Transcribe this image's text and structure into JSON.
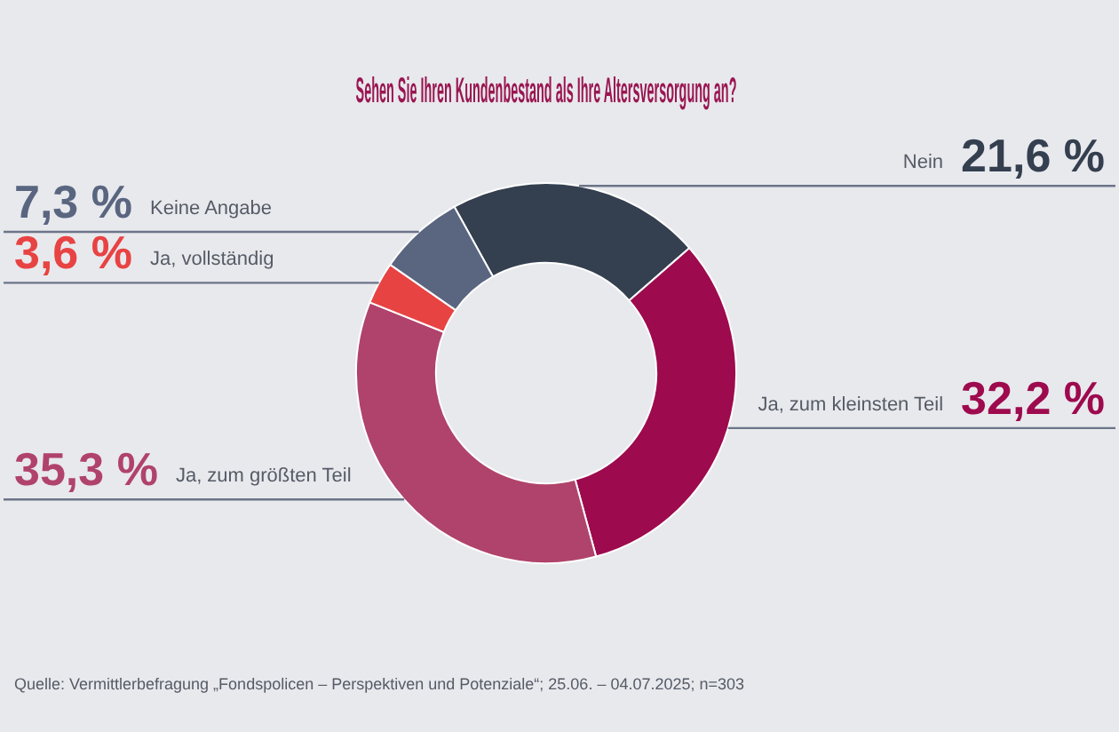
{
  "chart_data": {
    "type": "donut",
    "title": "Sehen Sie Ihren Kundenbestand als Ihre Altersversorgung an?",
    "categories": [
      "Nein",
      "Ja, zum kleinsten Teil",
      "Ja, zum größten Teil",
      "Ja, vollständig",
      "Keine Angabe"
    ],
    "values": [
      21.6,
      32.2,
      35.3,
      3.6,
      7.3
    ],
    "colors": [
      "#343f4f",
      "#9e0a4e",
      "#b0436b",
      "#e84343",
      "#5a6680"
    ],
    "value_labels": [
      "21,6 %",
      "32,2 %",
      "35,3 %",
      "3,6 %",
      "7,3 %"
    ],
    "annotations": [
      "Quelle: Vermittlerbefragung „Fondspolicen – Perspektiven und Potenziale“; 25.06. – 04.07.2025; n=303"
    ],
    "legend": false
  }
}
